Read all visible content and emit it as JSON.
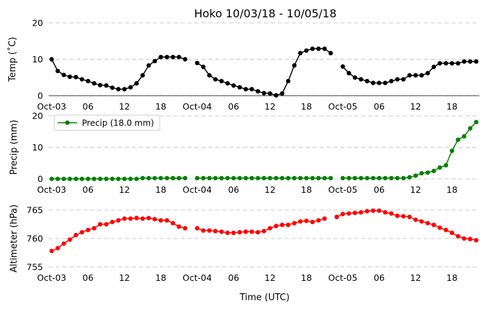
{
  "chart_data": {
    "type": "line",
    "title": "Hoko 10/03/18 - 10/05/18",
    "xlabel": "Time (UTC)",
    "x": [
      0,
      1,
      2,
      3,
      4,
      5,
      6,
      7,
      8,
      9,
      10,
      11,
      12,
      13,
      14,
      15,
      16,
      17,
      18,
      19,
      20,
      21,
      22,
      23,
      24,
      25,
      26,
      27,
      28,
      29,
      30,
      31,
      32,
      33,
      34,
      35,
      36,
      37,
      38,
      39,
      40,
      41,
      42,
      43,
      44,
      45,
      46,
      47,
      48,
      49,
      50,
      51,
      52,
      53,
      54,
      55,
      56,
      57,
      58,
      59,
      60,
      61,
      62,
      63,
      64,
      65,
      66,
      67,
      68,
      69,
      70
    ],
    "x_start": "Oct-03 00 UTC",
    "xlim": [
      -0.5,
      70.5
    ],
    "xticks": [
      {
        "x": 0,
        "label": "Oct-03"
      },
      {
        "x": 6,
        "label": "06"
      },
      {
        "x": 12,
        "label": "12"
      },
      {
        "x": 18,
        "label": "18"
      },
      {
        "x": 24,
        "label": "Oct-04"
      },
      {
        "x": 30,
        "label": "06"
      },
      {
        "x": 36,
        "label": "12"
      },
      {
        "x": 42,
        "label": "18"
      },
      {
        "x": 48,
        "label": "Oct-05"
      },
      {
        "x": 54,
        "label": "06"
      },
      {
        "x": 60,
        "label": "12"
      },
      {
        "x": 66,
        "label": "18"
      }
    ],
    "panels": [
      {
        "name": "temp",
        "ylabel": "Temp ($^\\circ$C)",
        "ylabel_display": "Temp (˚C)",
        "ylim": [
          0,
          20
        ],
        "yticks": [
          0,
          10,
          20
        ],
        "color": "#000000",
        "grid": true,
        "legend": null,
        "values": [
          10.0,
          6.8,
          5.7,
          5.2,
          5.1,
          4.5,
          4.0,
          3.4,
          2.9,
          2.8,
          2.2,
          1.8,
          1.8,
          2.3,
          3.4,
          5.6,
          8.3,
          9.5,
          10.6,
          10.6,
          10.6,
          10.6,
          10.0,
          null,
          9.0,
          7.9,
          5.6,
          4.5,
          4.0,
          3.4,
          2.8,
          2.3,
          1.8,
          1.8,
          1.2,
          0.7,
          0.6,
          0.1,
          0.6,
          4.0,
          8.3,
          11.7,
          12.4,
          12.9,
          12.9,
          12.9,
          11.7,
          null,
          8.0,
          6.2,
          5.0,
          4.5,
          4.0,
          3.5,
          3.5,
          3.5,
          4.0,
          4.5,
          4.5,
          5.6,
          5.6,
          5.6,
          6.2,
          7.9,
          8.9,
          8.9,
          8.9,
          8.9,
          9.4,
          9.4,
          9.4
        ]
      },
      {
        "name": "precip",
        "ylabel": "Precip (mm)",
        "ylim": [
          0,
          20
        ],
        "yticks": [
          0,
          10,
          20
        ],
        "color": "#008000",
        "grid": true,
        "legend": {
          "label": "Precip (18.0 mm)",
          "position": "upper-left"
        },
        "values": [
          0.0,
          0.0,
          0.0,
          0.0,
          0.0,
          0.0,
          0.0,
          0.0,
          0.0,
          0.0,
          0.0,
          0.0,
          0.0,
          0.0,
          0.0,
          0.25,
          0.25,
          0.25,
          0.25,
          0.25,
          0.25,
          0.25,
          0.25,
          null,
          0.25,
          0.25,
          0.25,
          0.25,
          0.25,
          0.25,
          0.25,
          0.25,
          0.25,
          0.25,
          0.25,
          0.25,
          0.25,
          0.25,
          0.25,
          0.25,
          0.25,
          0.25,
          0.25,
          0.25,
          0.25,
          0.25,
          0.25,
          null,
          0.25,
          0.25,
          0.25,
          0.25,
          0.25,
          0.25,
          0.25,
          0.25,
          0.25,
          0.25,
          0.25,
          0.5,
          1.0,
          1.8,
          2.0,
          2.5,
          3.6,
          4.3,
          8.9,
          12.4,
          13.5,
          16.0,
          18.0
        ]
      },
      {
        "name": "altimeter",
        "ylabel": "Altimeter (hPa)",
        "ylim": [
          755,
          765
        ],
        "yticks": [
          755,
          760,
          765
        ],
        "color": "#ff0000",
        "grid": true,
        "legend": null,
        "values": [
          757.8,
          758.3,
          759.1,
          759.8,
          760.6,
          761.1,
          761.5,
          761.8,
          762.5,
          762.5,
          762.9,
          763.2,
          763.5,
          763.5,
          763.6,
          763.5,
          763.6,
          763.4,
          763.2,
          763.2,
          762.7,
          762.1,
          761.8,
          null,
          761.8,
          761.4,
          761.4,
          761.3,
          761.2,
          761.0,
          761.0,
          761.1,
          761.2,
          761.2,
          761.1,
          761.3,
          761.8,
          762.2,
          762.4,
          762.4,
          762.7,
          763.0,
          763.1,
          762.9,
          763.2,
          763.5,
          null,
          763.8,
          764.3,
          764.4,
          764.5,
          764.6,
          764.8,
          764.9,
          764.9,
          764.6,
          764.4,
          764.0,
          763.9,
          763.8,
          763.3,
          763.0,
          762.7,
          762.4,
          761.9,
          761.5,
          761.0,
          760.4,
          760.0,
          759.9,
          759.7
        ]
      }
    ]
  }
}
